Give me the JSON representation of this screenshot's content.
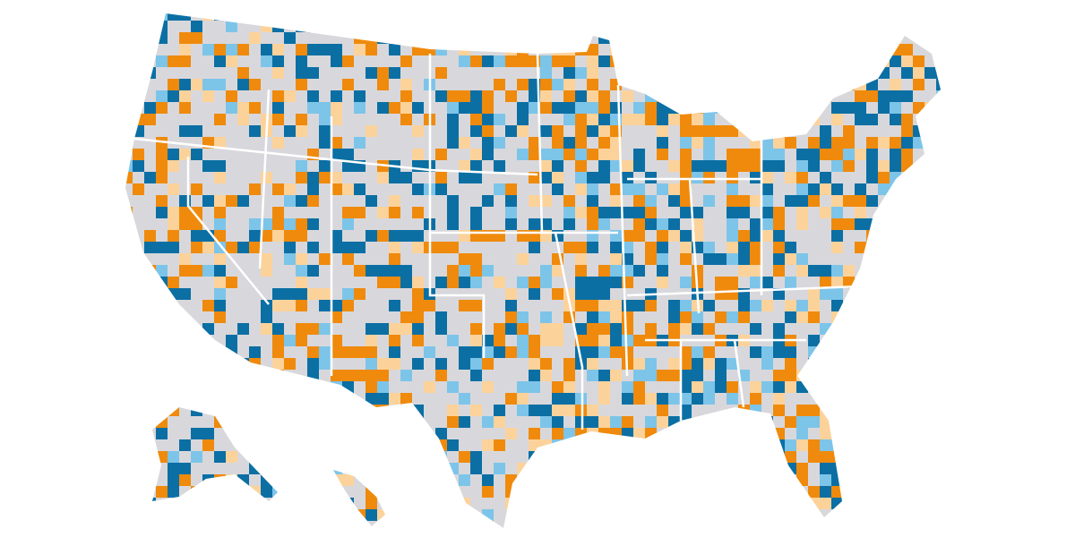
{
  "map": {
    "colors": [
      "#d8d8dc",
      "#0b6fa4",
      "#ef8a0c",
      "#fcd29b",
      "#7dc4e9"
    ]
  }
}
